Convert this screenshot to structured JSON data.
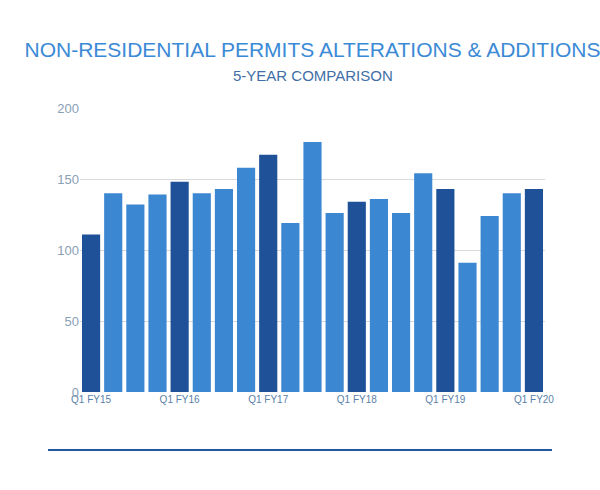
{
  "chart_data": {
    "type": "bar",
    "title": "NON-RESIDENTIAL PERMITS ALTERATIONS & ADDITIONS",
    "subtitle": "5-YEAR COMPARISON",
    "categories": [
      "Q1 FY15",
      null,
      null,
      null,
      "Q1 FY16",
      null,
      null,
      null,
      "Q1 FY17",
      null,
      null,
      null,
      "Q1 FY18",
      null,
      null,
      null,
      "Q1 FY19",
      null,
      null,
      null,
      "Q1 FY20"
    ],
    "values": [
      111,
      140,
      132,
      139,
      148,
      140,
      143,
      158,
      167,
      119,
      176,
      126,
      134,
      136,
      126,
      154,
      143,
      91,
      124,
      140,
      143
    ],
    "colors": [
      "#1f5199",
      "#3c87d2",
      "#3c87d2",
      "#3c87d2",
      "#1f5199",
      "#3c87d2",
      "#3c87d2",
      "#3c87d2",
      "#1f5199",
      "#3c87d2",
      "#3c87d2",
      "#3c87d2",
      "#1f5199",
      "#3c87d2",
      "#3c87d2",
      "#3c87d2",
      "#1f5199",
      "#3c87d2",
      "#3c87d2",
      "#3c87d2",
      "#1f5199"
    ],
    "ylim": [
      0,
      200
    ],
    "yticks": [
      0,
      50,
      100,
      150,
      200
    ],
    "grid": true
  }
}
